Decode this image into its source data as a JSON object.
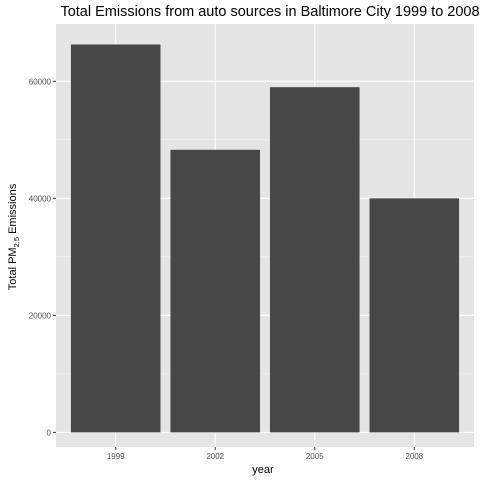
{
  "chart_data": {
    "type": "bar",
    "title": "Total Emissions from auto sources in Baltimore City 1999 to 2008",
    "xlabel": "year",
    "ylabel": {
      "prefix": "Total PM",
      "subscript": "2.5",
      "suffix": " Emissions"
    },
    "categories": [
      "1999",
      "2002",
      "2005",
      "2008"
    ],
    "values": [
      66300,
      48300,
      59000,
      40000
    ],
    "ylim": [
      -2500,
      69800
    ],
    "yticks": [
      0,
      20000,
      40000,
      60000
    ],
    "ytick_labels": [
      "0",
      "20000",
      "40000",
      "60000"
    ],
    "grid": true,
    "legend": "none",
    "colors": {
      "bar": "#474747",
      "panel": "#e5e5e5",
      "grid_major": "#ffffff",
      "grid_minor": "#f2f2f2",
      "tick": "#333333"
    }
  }
}
